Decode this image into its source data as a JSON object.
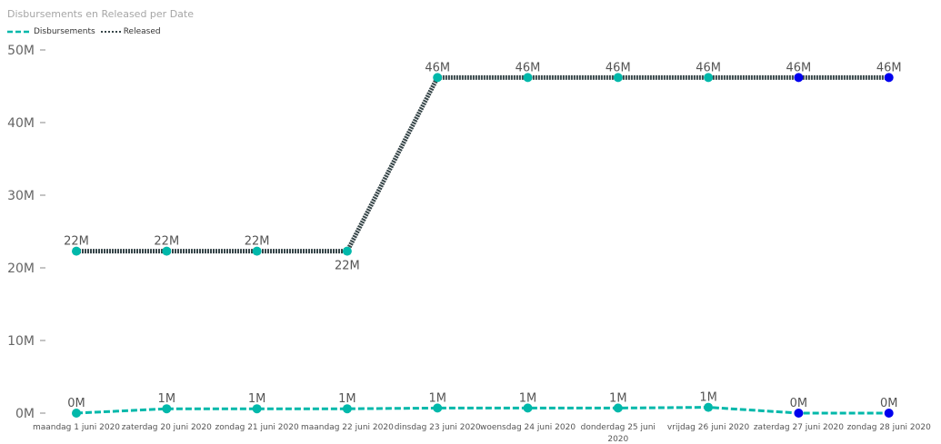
{
  "chart_data": {
    "type": "line",
    "title": "Disbursements en Released per Date",
    "categories": [
      "maandag 1 juni 2020",
      "zaterdag 20 juni 2020",
      "zondag 21 juni 2020",
      "maandag 22 juni 2020",
      "dinsdag 23 juni 2020",
      "woensdag 24 juni 2020",
      "donderdag 25 juni 2020",
      "vrijdag 26 juni 2020",
      "zaterdag 27 juni 2020",
      "zondag 28 juni 2020"
    ],
    "series": [
      {
        "name": "Disbursements",
        "style": "dashed",
        "color": "#01b8aa",
        "values": [
          0,
          0.6,
          0.6,
          0.6,
          0.7,
          0.7,
          0.7,
          0.8,
          0,
          0
        ],
        "labels": [
          "0M",
          "1M",
          "1M",
          "1M",
          "1M",
          "1M",
          "1M",
          "1M",
          "0M",
          "0M"
        ]
      },
      {
        "name": "Released",
        "style": "dotted",
        "color": "#374649",
        "values": [
          22.3,
          22.3,
          22.3,
          22.3,
          46.2,
          46.2,
          46.2,
          46.2,
          46.2,
          46.2
        ],
        "labels": [
          "22M",
          "22M",
          "22M",
          "22M",
          "46M",
          "46M",
          "46M",
          "46M",
          "46M",
          "46M"
        ]
      }
    ],
    "marker_colors": {
      "default": "#01b8aa",
      "highlight": "#0000ee"
    },
    "y_ticks": [
      "0M",
      "10M",
      "20M",
      "30M",
      "40M",
      "50M"
    ],
    "ylim": [
      0,
      50
    ],
    "grid": false,
    "legend_position": "top-left"
  }
}
